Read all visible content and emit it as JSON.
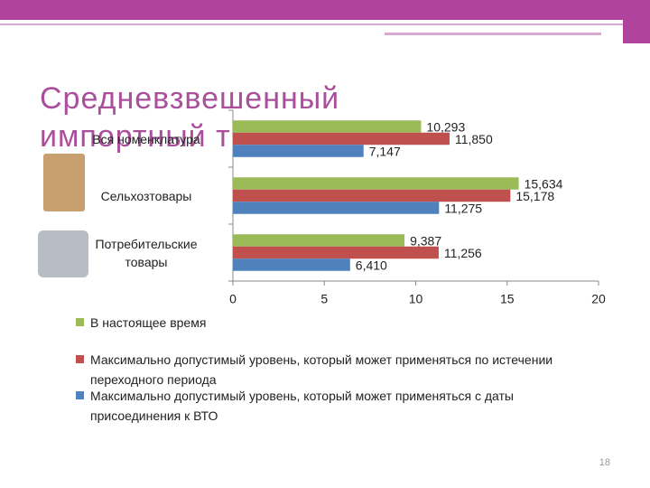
{
  "chart_data": {
    "type": "bar",
    "orientation": "horizontal",
    "title": "Средневзвешенный импортный т",
    "categories": [
      "Вся номенклатура",
      "Сельхозтовары",
      "Потребительские товары"
    ],
    "series": [
      {
        "name": "В настоящее время",
        "color": "#9bbb59",
        "values": [
          10.293,
          15.634,
          9.387
        ],
        "value_labels": [
          "10,293",
          "15,634",
          "9,387"
        ]
      },
      {
        "name": "Максимально допустимый уровень, который может применяться по истечении переходного периода",
        "color": "#c0504d",
        "values": [
          11.85,
          15.178,
          11.256
        ],
        "value_labels": [
          "11,850",
          "15,178",
          "11,256"
        ]
      },
      {
        "name": "Максимально допустимый уровень, который может применяться с даты присоединения к ВТО",
        "color": "#4f81bd",
        "values": [
          7.147,
          11.275,
          6.41
        ],
        "value_labels": [
          "7,147",
          "11,275",
          "6,410"
        ]
      }
    ],
    "xlim": [
      0,
      20
    ],
    "xticks": [
      0,
      5,
      10,
      15,
      20
    ],
    "legend": "bottom"
  },
  "slide_number": "18"
}
